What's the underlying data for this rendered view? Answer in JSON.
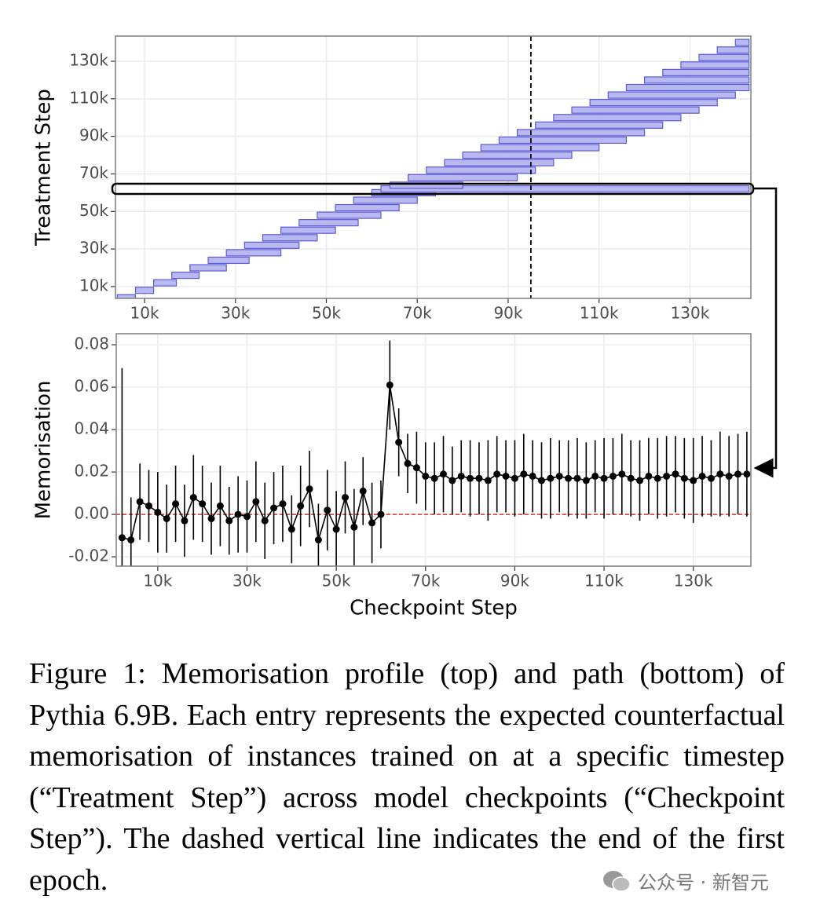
{
  "chart_data": [
    {
      "type": "heatmap",
      "ylabel": "Treatment Step",
      "xlim": [
        3600,
        143400
      ],
      "ylim": [
        3700,
        143400
      ],
      "xticks": [
        {
          "value": 10000,
          "label": "10k"
        },
        {
          "value": 30000,
          "label": "30k"
        },
        {
          "value": 50000,
          "label": "50k"
        },
        {
          "value": 70000,
          "label": "70k"
        },
        {
          "value": 90000,
          "label": "90k"
        },
        {
          "value": 110000,
          "label": "110k"
        },
        {
          "value": 130000,
          "label": "130k"
        }
      ],
      "yticks": [
        {
          "value": 10000,
          "label": "10k"
        },
        {
          "value": 30000,
          "label": "30k"
        },
        {
          "value": 50000,
          "label": "50k"
        },
        {
          "value": 70000,
          "label": "70k"
        },
        {
          "value": 90000,
          "label": "90k"
        },
        {
          "value": 110000,
          "label": "110k"
        },
        {
          "value": 130000,
          "label": "130k"
        }
      ],
      "grid": true,
      "color": "#b9b9f2",
      "edge_color": "#5b5bd6",
      "vline": 95000,
      "y": [
        4000,
        8000,
        12000,
        16000,
        20000,
        24000,
        28000,
        32000,
        36000,
        40000,
        44000,
        48000,
        52000,
        56000,
        60000,
        62000,
        64000,
        68000,
        72000,
        76000,
        80000,
        84000,
        88000,
        92000,
        96000,
        100000,
        104000,
        108000,
        112000,
        116000,
        120000,
        124000,
        128000,
        132000,
        136000,
        140000
      ],
      "x_start": [
        4000,
        8000,
        12000,
        16000,
        20000,
        24000,
        28000,
        32000,
        36000,
        40000,
        44000,
        48000,
        52000,
        56000,
        60000,
        62000,
        64000,
        68000,
        72000,
        76000,
        80000,
        84000,
        88000,
        92000,
        96000,
        100000,
        104000,
        108000,
        112000,
        116000,
        120000,
        124000,
        128000,
        132000,
        136000,
        140000
      ],
      "x_end": [
        8000,
        12000,
        17000,
        22000,
        28000,
        33000,
        40000,
        44000,
        48000,
        52000,
        57000,
        62000,
        66000,
        70000,
        74000,
        143000,
        80000,
        92000,
        96000,
        100000,
        104000,
        110000,
        116000,
        120000,
        124000,
        128000,
        132000,
        136000,
        140000,
        143000,
        143000,
        143000,
        143000,
        143000,
        143000,
        143000
      ]
    },
    {
      "type": "errorline",
      "xlabel": "Checkpoint Step",
      "ylabel": "Memorisation",
      "xlim": [
        700,
        142900
      ],
      "ylim": [
        -0.0244,
        0.0852
      ],
      "xticks": [
        {
          "value": 10000,
          "label": "10k"
        },
        {
          "value": 30000,
          "label": "30k"
        },
        {
          "value": 50000,
          "label": "50k"
        },
        {
          "value": 70000,
          "label": "70k"
        },
        {
          "value": 90000,
          "label": "90k"
        },
        {
          "value": 110000,
          "label": "110k"
        },
        {
          "value": 130000,
          "label": "130k"
        }
      ],
      "yticks": [
        -0.02,
        {
          "value": 0,
          "label": "0.00"
        },
        0.02,
        0.04,
        0.06,
        0.08
      ],
      "grid": true,
      "color": "#000000",
      "hline": 0,
      "hline_color": "#e03030",
      "x": [
        2000,
        4000,
        6000,
        8000,
        10000,
        12000,
        14000,
        16000,
        18000,
        20000,
        22000,
        24000,
        26000,
        28000,
        30000,
        32000,
        34000,
        36000,
        38000,
        40000,
        42000,
        44000,
        46000,
        48000,
        50000,
        52000,
        54000,
        56000,
        58000,
        60000,
        62000,
        64000,
        66000,
        68000,
        70000,
        72000,
        74000,
        76000,
        78000,
        80000,
        82000,
        84000,
        86000,
        88000,
        90000,
        92000,
        94000,
        96000,
        98000,
        100000,
        102000,
        104000,
        106000,
        108000,
        110000,
        112000,
        114000,
        116000,
        118000,
        120000,
        122000,
        124000,
        126000,
        128000,
        130000,
        132000,
        134000,
        136000,
        138000,
        140000,
        142000
      ],
      "values": [
        -0.011,
        -0.012,
        0.006,
        0.004,
        0.001,
        -0.002,
        0.005,
        -0.003,
        0.008,
        0.005,
        -0.002,
        0.004,
        -0.003,
        0.0,
        -0.001,
        0.006,
        -0.003,
        0.003,
        0.005,
        -0.007,
        0.004,
        0.012,
        -0.012,
        0.002,
        -0.007,
        0.008,
        -0.006,
        0.011,
        -0.004,
        0.0,
        0.061,
        0.034,
        0.024,
        0.022,
        0.018,
        0.017,
        0.019,
        0.016,
        0.018,
        0.017,
        0.017,
        0.016,
        0.019,
        0.018,
        0.017,
        0.019,
        0.018,
        0.016,
        0.017,
        0.018,
        0.017,
        0.017,
        0.016,
        0.018,
        0.017,
        0.018,
        0.019,
        0.017,
        0.016,
        0.018,
        0.017,
        0.018,
        0.019,
        0.017,
        0.016,
        0.018,
        0.017,
        0.019,
        0.018,
        0.019,
        0.019
      ],
      "errors": [
        0.08,
        0.02,
        0.018,
        0.017,
        0.019,
        0.016,
        0.018,
        0.017,
        0.02,
        0.018,
        0.017,
        0.019,
        0.016,
        0.018,
        0.017,
        0.019,
        0.018,
        0.017,
        0.018,
        0.016,
        0.019,
        0.018,
        0.017,
        0.019,
        0.018,
        0.017,
        0.018,
        0.016,
        0.019,
        0.016,
        0.021,
        0.016,
        0.014,
        0.017,
        0.016,
        0.017,
        0.018,
        0.016,
        0.017,
        0.018,
        0.017,
        0.019,
        0.018,
        0.017,
        0.018,
        0.019,
        0.017,
        0.018,
        0.019,
        0.017,
        0.018,
        0.019,
        0.018,
        0.017,
        0.019,
        0.018,
        0.019,
        0.018,
        0.019,
        0.018,
        0.019,
        0.019,
        0.018,
        0.019,
        0.02,
        0.019,
        0.018,
        0.02,
        0.019,
        0.019,
        0.02
      ]
    }
  ],
  "caption": "Figure 1: Memorisation profile (top) and path (bottom) of Pythia 6.9B.  Each entry represents the expected counterfactual memorisation of instances trained on at a specific timestep (“Treatment Step”) across model checkpoints (“Checkpoint Step”). The dashed vertical line indicates the end of the first epoch.",
  "watermark": "公众号 · 新智元"
}
